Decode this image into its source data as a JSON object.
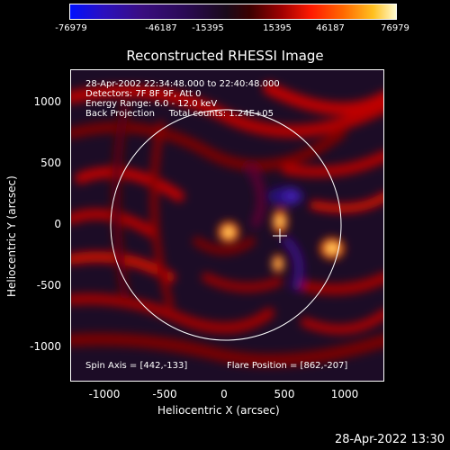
{
  "colorbar": {
    "ticks": [
      "-76979",
      "-46187",
      "-15395",
      "15395",
      "46187",
      "76979"
    ]
  },
  "title": "Reconstructed RHESSI Image",
  "info": {
    "line1": "28-Apr-2002 22:34:48.000 to 22:40:48.000",
    "line2": "Detectors: 7F 8F 9F, Att 0",
    "line3": "Energy Range: 6.0 - 12.0 keV",
    "line4": "Back Projection     Total counts: 1.24E+05"
  },
  "bottom_info": {
    "spin_axis": "Spin Axis = [442,-133]",
    "flare_position": "Flare Position = [862,-207]"
  },
  "axes": {
    "ylabel": "Heliocentric Y (arcsec)",
    "xlabel": "Heliocentric X (arcsec)",
    "yticks": [
      "1000",
      "500",
      "0",
      "-500",
      "-1000"
    ],
    "xticks": [
      "-1000",
      "-500",
      "0",
      "500",
      "1000"
    ]
  },
  "footer": "28-Apr-2022 13:30"
}
